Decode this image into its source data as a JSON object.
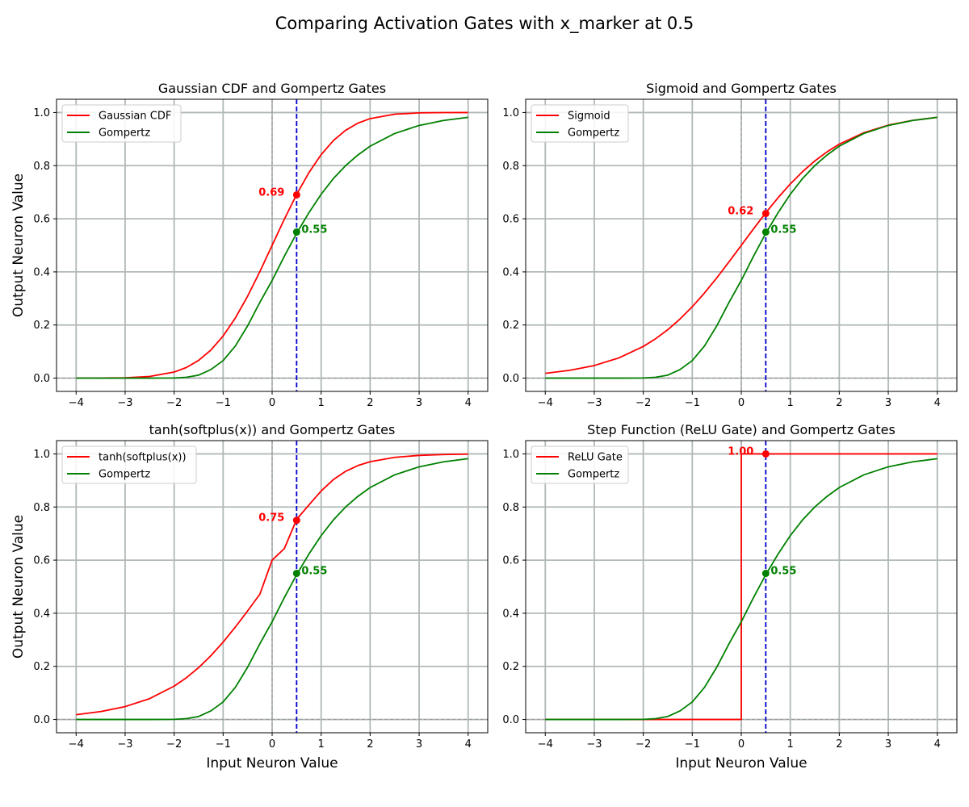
{
  "figure": {
    "suptitle": "Comparing Activation Gates with x_marker at 0.5"
  },
  "chart_data": [
    {
      "type": "line",
      "title": "Gaussian CDF and Gompertz Gates",
      "xlabel": "",
      "ylabel": "Output Neuron Value",
      "xlim": [
        -4.4,
        4.4
      ],
      "ylim": [
        -0.05,
        1.05
      ],
      "xticks": [
        "−4",
        "−3",
        "−2",
        "−1",
        "0",
        "1",
        "2",
        "3",
        "4"
      ],
      "yticks": [
        "0.0",
        "0.2",
        "0.4",
        "0.6",
        "0.8",
        "1.0"
      ],
      "grid": true,
      "legend": "upper left",
      "x_marker": 0.5,
      "x": [
        -4,
        -3.5,
        -3,
        -2.5,
        -2,
        -1.75,
        -1.5,
        -1.25,
        -1,
        -0.75,
        -0.5,
        -0.25,
        0,
        0.25,
        0.5,
        0.75,
        1,
        1.25,
        1.5,
        1.75,
        2,
        2.5,
        3,
        3.5,
        4
      ],
      "series": [
        {
          "name": "Gaussian CDF",
          "color": "#ff0000",
          "values": [
            0.0,
            0.0002,
            0.0013,
            0.0062,
            0.0228,
            0.0401,
            0.0668,
            0.1056,
            0.1587,
            0.2266,
            0.3085,
            0.4013,
            0.5,
            0.5987,
            0.6915,
            0.7734,
            0.8413,
            0.8944,
            0.9332,
            0.9599,
            0.9772,
            0.9938,
            0.9987,
            0.9998,
            1.0
          ]
        },
        {
          "name": "Gompertz",
          "color": "#008000",
          "values": [
            0.0,
            0.0,
            0.0,
            0.0,
            0.0006,
            0.0031,
            0.0113,
            0.0322,
            0.066,
            0.1211,
            0.1969,
            0.2853,
            0.3679,
            0.4592,
            0.5452,
            0.6226,
            0.6922,
            0.7513,
            0.8001,
            0.84,
            0.8734,
            0.9211,
            0.9514,
            0.9702,
            0.9819
          ]
        }
      ],
      "markers": [
        {
          "x": 0.5,
          "y": 0.69,
          "label": "0.69",
          "color": "#ff0000",
          "side": "left"
        },
        {
          "x": 0.5,
          "y": 0.55,
          "label": "0.55",
          "color": "#008000",
          "side": "right"
        }
      ]
    },
    {
      "type": "line",
      "title": "Sigmoid and Gompertz Gates",
      "xlabel": "",
      "ylabel": "",
      "xlim": [
        -4.4,
        4.4
      ],
      "ylim": [
        -0.05,
        1.05
      ],
      "xticks": [
        "−4",
        "−3",
        "−2",
        "−1",
        "0",
        "1",
        "2",
        "3",
        "4"
      ],
      "yticks": [
        "0.0",
        "0.2",
        "0.4",
        "0.6",
        "0.8",
        "1.0"
      ],
      "grid": true,
      "legend": "upper left",
      "x_marker": 0.5,
      "x": [
        -4,
        -3.5,
        -3,
        -2.5,
        -2,
        -1.75,
        -1.5,
        -1.25,
        -1,
        -0.75,
        -0.5,
        -0.25,
        0,
        0.25,
        0.5,
        0.75,
        1,
        1.25,
        1.5,
        1.75,
        2,
        2.5,
        3,
        3.5,
        4
      ],
      "series": [
        {
          "name": "Sigmoid",
          "color": "#ff0000",
          "values": [
            0.018,
            0.0293,
            0.0474,
            0.0759,
            0.1192,
            0.148,
            0.1824,
            0.2227,
            0.2689,
            0.3208,
            0.3775,
            0.4378,
            0.5,
            0.5622,
            0.6225,
            0.6792,
            0.7311,
            0.7773,
            0.8176,
            0.852,
            0.8808,
            0.9241,
            0.9526,
            0.9707,
            0.982
          ]
        },
        {
          "name": "Gompertz",
          "color": "#008000",
          "values": [
            0.0,
            0.0,
            0.0,
            0.0,
            0.0006,
            0.0031,
            0.0113,
            0.0322,
            0.066,
            0.1211,
            0.1969,
            0.2853,
            0.3679,
            0.4592,
            0.5452,
            0.6226,
            0.6922,
            0.7513,
            0.8001,
            0.84,
            0.8734,
            0.9211,
            0.9514,
            0.9702,
            0.9819
          ]
        }
      ],
      "markers": [
        {
          "x": 0.5,
          "y": 0.62,
          "label": "0.62",
          "color": "#ff0000",
          "side": "left"
        },
        {
          "x": 0.5,
          "y": 0.55,
          "label": "0.55",
          "color": "#008000",
          "side": "right"
        }
      ]
    },
    {
      "type": "line",
      "title": "tanh(softplus(x)) and Gompertz Gates",
      "xlabel": "Input Neuron Value",
      "ylabel": "Output Neuron Value",
      "xlim": [
        -4.4,
        4.4
      ],
      "ylim": [
        -0.05,
        1.05
      ],
      "xticks": [
        "−4",
        "−3",
        "−2",
        "−1",
        "0",
        "1",
        "2",
        "3",
        "4"
      ],
      "yticks": [
        "0.0",
        "0.2",
        "0.4",
        "0.6",
        "0.8",
        "1.0"
      ],
      "grid": true,
      "legend": "upper left",
      "x_marker": 0.5,
      "x": [
        -4,
        -3.5,
        -3,
        -2.5,
        -2,
        -1.75,
        -1.5,
        -1.25,
        -1,
        -0.75,
        -0.5,
        -0.25,
        0,
        0.25,
        0.5,
        0.75,
        1,
        1.25,
        1.5,
        1.75,
        2,
        2.5,
        3,
        3.5,
        4
      ],
      "series": [
        {
          "name": "tanh(softplus(x))",
          "color": "#ff0000",
          "values": [
            0.0181,
            0.0297,
            0.0485,
            0.0785,
            0.1255,
            0.1571,
            0.1952,
            0.2401,
            0.2913,
            0.3481,
            0.4088,
            0.4718,
            0.6,
            0.6436,
            0.7533,
            0.8075,
            0.8603,
            0.9033,
            0.9345,
            0.9561,
            0.9707,
            0.987,
            0.9944,
            0.9976,
            0.999
          ]
        },
        {
          "name": "Gompertz",
          "color": "#008000",
          "values": [
            0.0,
            0.0,
            0.0,
            0.0,
            0.0006,
            0.0031,
            0.0113,
            0.0322,
            0.066,
            0.1211,
            0.1969,
            0.2853,
            0.3679,
            0.4592,
            0.5452,
            0.6226,
            0.6922,
            0.7513,
            0.8001,
            0.84,
            0.8734,
            0.9211,
            0.9514,
            0.9702,
            0.9819
          ]
        }
      ],
      "markers": [
        {
          "x": 0.5,
          "y": 0.75,
          "label": "0.75",
          "color": "#ff0000",
          "side": "left"
        },
        {
          "x": 0.5,
          "y": 0.55,
          "label": "0.55",
          "color": "#008000",
          "side": "right"
        }
      ]
    },
    {
      "type": "line",
      "title": "Step Function (ReLU Gate) and Gompertz Gates",
      "xlabel": "Input Neuron Value",
      "ylabel": "",
      "xlim": [
        -4.4,
        4.4
      ],
      "ylim": [
        -0.05,
        1.05
      ],
      "xticks": [
        "−4",
        "−3",
        "−2",
        "−1",
        "0",
        "1",
        "2",
        "3",
        "4"
      ],
      "yticks": [
        "0.0",
        "0.2",
        "0.4",
        "0.6",
        "0.8",
        "1.0"
      ],
      "grid": true,
      "legend": "upper left",
      "x_marker": 0.5,
      "x": [
        -4,
        -3.5,
        -3,
        -2.5,
        -2,
        -1.75,
        -1.5,
        -1.25,
        -1,
        -0.75,
        -0.5,
        -0.25,
        0,
        0,
        0.25,
        0.5,
        0.75,
        1,
        1.25,
        1.5,
        1.75,
        2,
        2.5,
        3,
        3.5,
        4
      ],
      "series": [
        {
          "name": "ReLU Gate",
          "color": "#ff0000",
          "values": [
            0,
            0,
            0,
            0,
            0,
            0,
            0,
            0,
            0,
            0,
            0,
            0,
            0,
            1,
            1,
            1,
            1,
            1,
            1,
            1,
            1,
            1,
            1,
            1,
            1,
            1
          ]
        },
        {
          "name": "Gompertz",
          "color": "#008000",
          "values": [
            0.0,
            0.0,
            0.0,
            0.0,
            0.0006,
            0.0031,
            0.0113,
            0.0322,
            0.066,
            0.1211,
            0.1969,
            0.2853,
            0.3679,
            0.3679,
            0.4592,
            0.5452,
            0.6226,
            0.6922,
            0.7513,
            0.8001,
            0.84,
            0.8734,
            0.9211,
            0.9514,
            0.9702,
            0.9819
          ]
        }
      ],
      "markers": [
        {
          "x": 0.5,
          "y": 1.0,
          "label": "1.00",
          "color": "#ff0000",
          "side": "left"
        },
        {
          "x": 0.5,
          "y": 0.55,
          "label": "0.55",
          "color": "#008000",
          "side": "right"
        }
      ]
    }
  ]
}
